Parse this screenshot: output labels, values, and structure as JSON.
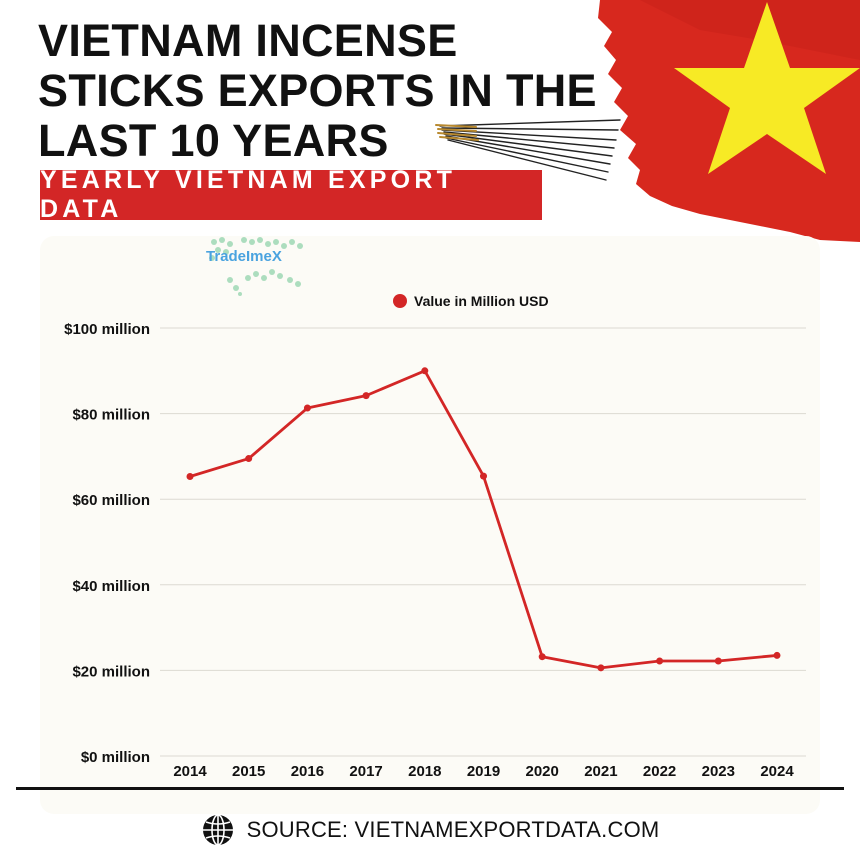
{
  "header": {
    "title_lines": [
      "VIETNAM INCENSE",
      "STICKS EXPORTS IN THE",
      "LAST 10 YEARS"
    ],
    "banner": "YEARLY VIETNAM EXPORT DATA"
  },
  "logo": {
    "text": "TradeImeX"
  },
  "footer": {
    "source": "SOURCE: VIETNAMEXPORTDATA.COM"
  },
  "colors": {
    "flag_red": "#d7281e",
    "flag_star": "#f7ea25",
    "line": "#d32626",
    "banner": "#d32626"
  },
  "icons": {
    "source_icon": "globe-icon",
    "legend_marker": "legend-dot"
  },
  "chart_data": {
    "type": "line",
    "title": "",
    "xlabel": "",
    "ylabel": "",
    "legend_position": "top-center",
    "grid": true,
    "ylim": [
      0,
      100
    ],
    "y_ticks": [
      0,
      20,
      40,
      60,
      80,
      100
    ],
    "y_tick_labels": [
      "$0 million",
      "$20 million",
      "$40 million",
      "$60 million",
      "$80 million",
      "$100 million"
    ],
    "categories": [
      "2014",
      "2015",
      "2016",
      "2017",
      "2018",
      "2019",
      "2020",
      "2021",
      "2022",
      "2023",
      "2024"
    ],
    "series": [
      {
        "name": "Value in Million USD",
        "values": [
          65.3,
          69.5,
          81.3,
          84.2,
          90.0,
          65.4,
          23.2,
          20.6,
          22.2,
          22.2,
          23.5
        ]
      }
    ]
  }
}
